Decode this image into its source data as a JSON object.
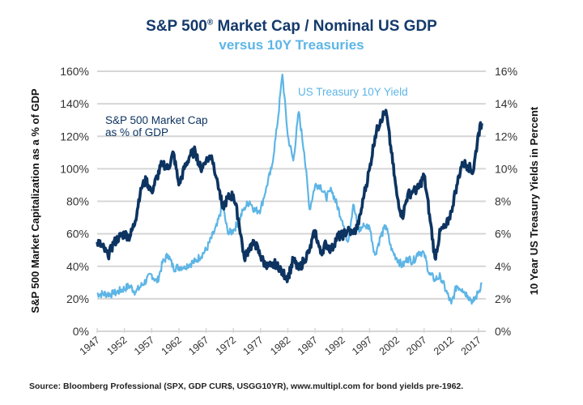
{
  "chart_data": {
    "type": "line",
    "title": "S&P 500® Market Cap / Nominal US GDP",
    "subtitle": "versus 10Y Treasuries",
    "title_main": "S&P 500",
    "title_reg": "®",
    "title_rest": " Market Cap / Nominal US GDP",
    "xlabel": "",
    "ylabel": "S&P 500 Market Capitalization as a % of GDP",
    "y2label": "10 Year US Treasury Yields in Percent",
    "xlim": [
      1947,
      2018.3
    ],
    "ylim": [
      0,
      160
    ],
    "y2lim": [
      0,
      16
    ],
    "grid": true,
    "x_ticks": [
      "1947",
      "1952",
      "1957",
      "1962",
      "1967",
      "1972",
      "1977",
      "1982",
      "1987",
      "1992",
      "1997",
      "2002",
      "2007",
      "2012",
      "2017"
    ],
    "y_ticks": [
      "0%",
      "20%",
      "40%",
      "60%",
      "80%",
      "100%",
      "120%",
      "140%",
      "160%"
    ],
    "y2_ticks": [
      "0%",
      "2%",
      "4%",
      "6%",
      "8%",
      "10%",
      "12%",
      "14%",
      "16%"
    ],
    "colors": {
      "market_cap": "#0d3461",
      "treasury": "#5db5e6",
      "title": "#143a6b",
      "grid": "#d6d6d6"
    },
    "series": [
      {
        "name": "S&P 500 Market Cap as % of GDP",
        "annotation": [
          "S&P 500 Market Cap",
          "as % of GDP"
        ],
        "axis": "left",
        "x": [
          1947,
          1948,
          1949,
          1950,
          1951,
          1952,
          1953,
          1954,
          1955,
          1956,
          1957,
          1958,
          1959,
          1960,
          1961,
          1962,
          1963,
          1964,
          1965,
          1966,
          1967,
          1968,
          1969,
          1970,
          1971,
          1972,
          1973,
          1974,
          1975,
          1976,
          1977,
          1978,
          1979,
          1980,
          1981,
          1982,
          1983,
          1984,
          1985,
          1986,
          1987,
          1988,
          1989,
          1990,
          1991,
          1992,
          1993,
          1994,
          1995,
          1996,
          1997,
          1998,
          1999,
          2000,
          2001,
          2002,
          2003,
          2004,
          2005,
          2006,
          2007,
          2008,
          2009,
          2010,
          2011,
          2012,
          2013,
          2014,
          2015,
          2016,
          2017,
          2017.6
        ],
        "values": [
          55,
          52,
          46,
          54,
          58,
          60,
          58,
          68,
          88,
          93,
          86,
          95,
          104,
          100,
          110,
          90,
          100,
          108,
          111,
          100,
          105,
          108,
          94,
          76,
          82,
          84,
          68,
          45,
          52,
          54,
          46,
          40,
          40,
          42,
          36,
          33,
          44,
          38,
          44,
          50,
          62,
          48,
          54,
          50,
          58,
          59,
          62,
          60,
          66,
          84,
          100,
          120,
          130,
          136,
          110,
          84,
          70,
          84,
          86,
          88,
          96,
          72,
          45,
          62,
          64,
          74,
          90,
          104,
          102,
          98,
          122,
          128
        ]
      },
      {
        "name": "US Treasury 10Y Yield",
        "annotation": [
          "US Treasury 10Y Yield"
        ],
        "axis": "right",
        "x": [
          1947,
          1950,
          1953,
          1954,
          1957,
          1958,
          1959,
          1960,
          1961,
          1963,
          1965,
          1967,
          1969,
          1970,
          1971,
          1972,
          1973,
          1974,
          1975,
          1976,
          1977,
          1978,
          1979,
          1980,
          1981,
          1982,
          1983,
          1984,
          1985,
          1986,
          1987,
          1988,
          1989,
          1990,
          1991,
          1992,
          1993,
          1994,
          1995,
          1996,
          1997,
          1998,
          1999,
          2000,
          2001,
          2002,
          2003,
          2004,
          2005,
          2006,
          2007,
          2008,
          2009,
          2010,
          2011,
          2012,
          2013,
          2014,
          2015,
          2016,
          2017,
          2017.6
        ],
        "values": [
          2.3,
          2.3,
          2.8,
          2.4,
          3.5,
          3.0,
          4.2,
          4.7,
          3.9,
          4.0,
          4.3,
          5.0,
          6.5,
          7.8,
          6.0,
          6.2,
          6.8,
          7.6,
          8.0,
          7.4,
          7.5,
          8.8,
          10.0,
          12.5,
          15.8,
          12.0,
          10.5,
          13.5,
          11.0,
          7.5,
          9.0,
          9.0,
          8.2,
          8.7,
          7.8,
          6.8,
          5.5,
          7.8,
          6.2,
          6.5,
          6.4,
          4.7,
          5.8,
          6.5,
          5.0,
          4.5,
          4.0,
          4.5,
          4.3,
          4.9,
          4.8,
          3.5,
          3.2,
          3.4,
          2.5,
          1.7,
          2.8,
          2.6,
          2.2,
          1.8,
          2.4,
          3.0
        ]
      }
    ],
    "source": "Source: Bloomberg Professional (SPX, GDP CUR$, USGG10YR), www.multipl.com for bond yields pre-1962."
  }
}
